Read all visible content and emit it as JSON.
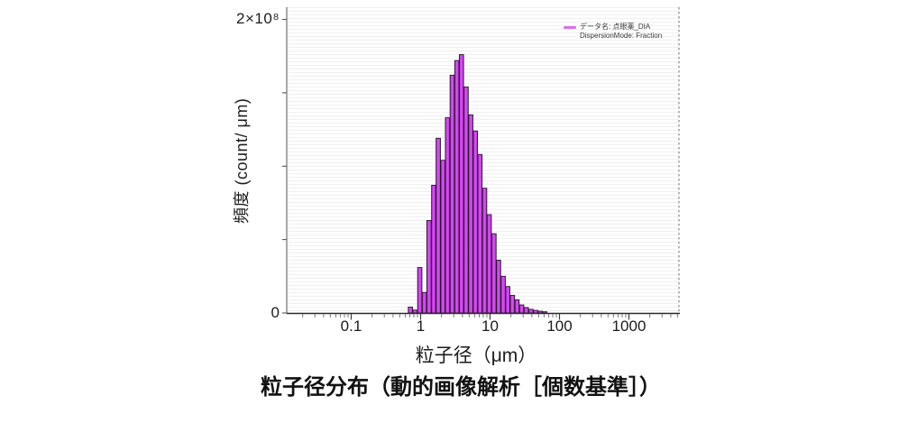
{
  "figure": {
    "caption": "粒子径分布（動的画像解析［個数基準］）"
  },
  "legend": {
    "line1": "データ名: 点眼薬_DIA",
    "line2": "DispersionMode: Fraction",
    "swatch_color": "#d973e8"
  },
  "axes": {
    "y_top_label": "2×10⁸",
    "y_zero_label": "0",
    "y_title": "頻度 (count/ μm)",
    "x_title": "粒子径（μm）"
  },
  "chart_data": {
    "type": "bar",
    "subtype": "histogram-log-x",
    "title": "粒子径分布（動的画像解析［個数基準］）",
    "xlabel": "粒子径（μm）",
    "ylabel": "頻度 (count/ μm)",
    "series_name": "点眼薬_DIA",
    "dispersion_mode": "Fraction",
    "x_scale": "log",
    "xlim": [
      0.012,
      5400
    ],
    "x_tick_labels": [
      "0.1",
      "1",
      "10",
      "100",
      "1000"
    ],
    "x_tick_values": [
      0.1,
      1,
      10,
      100,
      1000
    ],
    "y_unit": "×10^8 count/μm",
    "ylim_x1e8": [
      0,
      2
    ],
    "y_major_ticks_x1e8": [
      0,
      0.5,
      1.0,
      1.5,
      2.0
    ],
    "grid": "fine horizontal stripes",
    "legend_position": "top-right",
    "bar_color": "#c93ae8",
    "bar_edge_color": "#1f1f1f",
    "bin_edges_um": [
      0.66,
      0.77,
      0.9,
      1.05,
      1.22,
      1.43,
      1.66,
      1.94,
      2.26,
      2.64,
      3.08,
      3.59,
      4.18,
      4.88,
      5.69,
      6.63,
      7.73,
      9.02,
      10.5,
      12.3,
      14.3,
      16.7,
      19.4,
      22.7,
      26.4,
      30.8,
      35.9,
      41.9,
      48.9,
      57.0,
      66.4
    ],
    "values_x1e8": [
      0.04,
      0.02,
      0.31,
      0.14,
      0.63,
      0.87,
      1.19,
      1.04,
      1.33,
      1.62,
      1.72,
      1.76,
      1.54,
      1.35,
      1.24,
      1.08,
      0.85,
      0.67,
      0.54,
      0.36,
      0.25,
      0.18,
      0.12,
      0.09,
      0.055,
      0.037,
      0.025,
      0.018,
      0.012,
      0.008
    ]
  }
}
